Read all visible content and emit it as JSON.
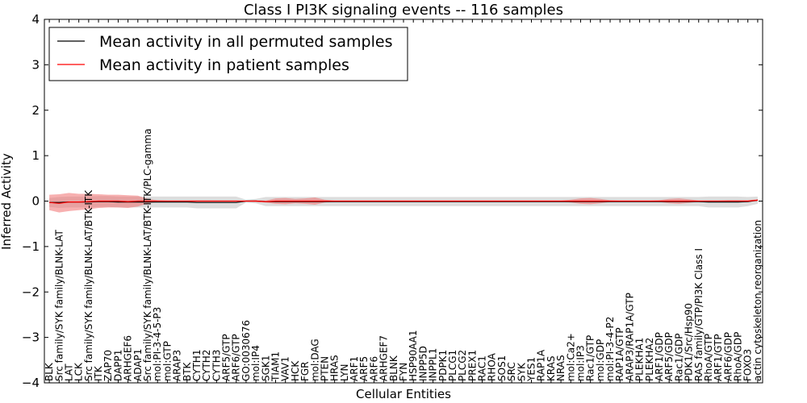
{
  "chart_data": {
    "type": "line",
    "title": "Class I PI3K signaling events -- 116 samples",
    "xlabel": "Cellular Entities",
    "ylabel": "Inferred Activity",
    "ylim": [
      -4,
      4
    ],
    "yticks": [
      "−4",
      "−3",
      "−2",
      "−1",
      "0",
      "1",
      "2",
      "3",
      "4"
    ],
    "legend": {
      "position": "top-left",
      "entries": [
        {
          "label": "Mean activity in all permuted samples",
          "color": "#000000"
        },
        {
          "label": "Mean activity in patient samples",
          "color": "#ff0000"
        }
      ]
    },
    "categories": [
      "BLK",
      "Src family/SYK family/BLNK-LAT",
      "LAT",
      "LCK",
      "Src family/SYK family/BLNK-LAT/BTK-ITK",
      "ITK",
      "ZAP70",
      "DAPP1",
      "ARHGEF6",
      "ADAP1",
      "Src family/SYK family/BLNK-LAT/BTK-ITK/PLC-gamma",
      "mol:PI-3-4-5-P3",
      "mol:GTP",
      "ARAP3",
      "BTK",
      "CYTH1",
      "CYTH2",
      "CYTH3",
      "ARF5/GTP",
      "ARF6/GTP",
      "GO:0030676",
      "mol:IP4",
      "SGK1",
      "TIAM1",
      "VAV1",
      "HCK",
      "FGR",
      "mol:DAG",
      "PTEN",
      "HRAS",
      "LYN",
      "ARF1",
      "ARF5",
      "ARF6",
      "ARHGEF7",
      "BLNK",
      "FYN",
      "HSP90AA1",
      "INPP5D",
      "INPPL1",
      "PDPK1",
      "PLCG1",
      "PLCG2",
      "PREX1",
      "RAC1",
      "RHOA",
      "SOS1",
      "SRC",
      "SYK",
      "YES1",
      "RAP1A",
      "KRAS",
      "NRAS",
      "mol:Ca2+",
      "mol:IP3",
      "Rac1/GTP",
      "mol:GDP",
      "mol:PI-3-4-P2",
      "RAP1A/GTP",
      "ARAP3/RAP1A/GTP",
      "PLEKHA1",
      "PLEKHA2",
      "ARF1/GDP",
      "ARF5/GDP",
      "Rac1/GDP",
      "PDK1/Src/Hsp90",
      "RAS family/GTP/PI3K Class I",
      "RhoA/GTP",
      "ARF1/GTP",
      "ARF6/GDP",
      "RhoA/GDP",
      "FOXO3",
      "actin cytoskeleton reorganization"
    ],
    "series": [
      {
        "name": "Mean activity in all permuted samples",
        "values": [
          -0.03,
          -0.03,
          -0.02,
          -0.02,
          -0.02,
          -0.01,
          -0.01,
          -0.02,
          -0.02,
          -0.02,
          -0.02,
          -0.02,
          -0.02,
          -0.02,
          -0.02,
          -0.03,
          -0.03,
          -0.03,
          -0.03,
          -0.03,
          0.0,
          0.0,
          -0.01,
          -0.01,
          -0.01,
          -0.01,
          -0.01,
          -0.01,
          -0.01,
          -0.01,
          -0.01,
          -0.01,
          -0.01,
          -0.01,
          -0.01,
          -0.01,
          -0.01,
          -0.01,
          -0.01,
          -0.01,
          -0.01,
          -0.01,
          -0.01,
          -0.01,
          -0.01,
          -0.01,
          -0.01,
          -0.01,
          -0.01,
          -0.01,
          -0.01,
          -0.01,
          -0.01,
          -0.01,
          -0.01,
          -0.01,
          -0.01,
          -0.01,
          -0.01,
          -0.01,
          -0.01,
          -0.01,
          -0.01,
          -0.01,
          -0.01,
          -0.01,
          -0.01,
          -0.02,
          -0.02,
          -0.02,
          -0.02,
          -0.01,
          0.02
        ],
        "band": [
          0.1,
          0.12,
          0.12,
          0.12,
          0.12,
          0.12,
          0.12,
          0.12,
          0.12,
          0.12,
          0.12,
          0.12,
          0.12,
          0.12,
          0.12,
          0.13,
          0.13,
          0.13,
          0.13,
          0.13,
          0.03,
          0.05,
          0.1,
          0.1,
          0.1,
          0.1,
          0.1,
          0.1,
          0.1,
          0.1,
          0.1,
          0.1,
          0.1,
          0.1,
          0.1,
          0.1,
          0.1,
          0.1,
          0.1,
          0.1,
          0.1,
          0.1,
          0.1,
          0.1,
          0.1,
          0.1,
          0.1,
          0.1,
          0.1,
          0.1,
          0.1,
          0.1,
          0.1,
          0.1,
          0.1,
          0.1,
          0.1,
          0.1,
          0.1,
          0.1,
          0.1,
          0.1,
          0.1,
          0.1,
          0.1,
          0.1,
          0.1,
          0.12,
          0.12,
          0.12,
          0.12,
          0.1,
          0.08
        ]
      },
      {
        "name": "Mean activity in patient samples",
        "values": [
          -0.03,
          -0.05,
          -0.02,
          -0.02,
          -0.01,
          0.0,
          0.0,
          0.0,
          -0.01,
          0.0,
          0.0,
          0.0,
          0.0,
          0.0,
          0.0,
          0.0,
          0.0,
          0.0,
          0.0,
          0.0,
          0.0,
          0.0,
          -0.01,
          0.0,
          0.0,
          0.0,
          0.0,
          0.0,
          0.0,
          0.0,
          0.0,
          0.0,
          0.0,
          0.0,
          0.0,
          0.0,
          0.0,
          0.0,
          0.0,
          0.0,
          0.0,
          0.0,
          0.0,
          0.0,
          0.0,
          0.0,
          0.0,
          0.0,
          0.0,
          0.0,
          0.0,
          0.0,
          0.0,
          0.0,
          0.0,
          0.0,
          0.0,
          0.0,
          0.0,
          0.0,
          0.0,
          0.0,
          0.0,
          0.0,
          0.0,
          0.0,
          0.0,
          0.0,
          0.0,
          0.0,
          0.0,
          0.0,
          0.02
        ],
        "band": [
          0.17,
          0.2,
          0.2,
          0.18,
          0.17,
          0.15,
          0.14,
          0.14,
          0.14,
          0.12,
          0.05,
          0.02,
          0.01,
          0.01,
          0.01,
          0.01,
          0.01,
          0.01,
          0.01,
          0.01,
          0.01,
          0.02,
          0.02,
          0.06,
          0.07,
          0.05,
          0.06,
          0.08,
          0.03,
          0.01,
          0.01,
          0.01,
          0.01,
          0.01,
          0.01,
          0.01,
          0.01,
          0.01,
          0.01,
          0.01,
          0.01,
          0.01,
          0.01,
          0.01,
          0.01,
          0.01,
          0.01,
          0.01,
          0.01,
          0.01,
          0.01,
          0.01,
          0.01,
          0.03,
          0.06,
          0.07,
          0.05,
          0.02,
          0.01,
          0.01,
          0.01,
          0.01,
          0.02,
          0.05,
          0.06,
          0.04,
          0.01,
          0.01,
          0.01,
          0.02,
          0.02,
          0.02,
          0.02
        ]
      }
    ]
  },
  "colors": {
    "band_grey": "#d9d9d9",
    "band_red": "#f07070",
    "line_red": "#ff0000",
    "line_black": "#000000"
  }
}
